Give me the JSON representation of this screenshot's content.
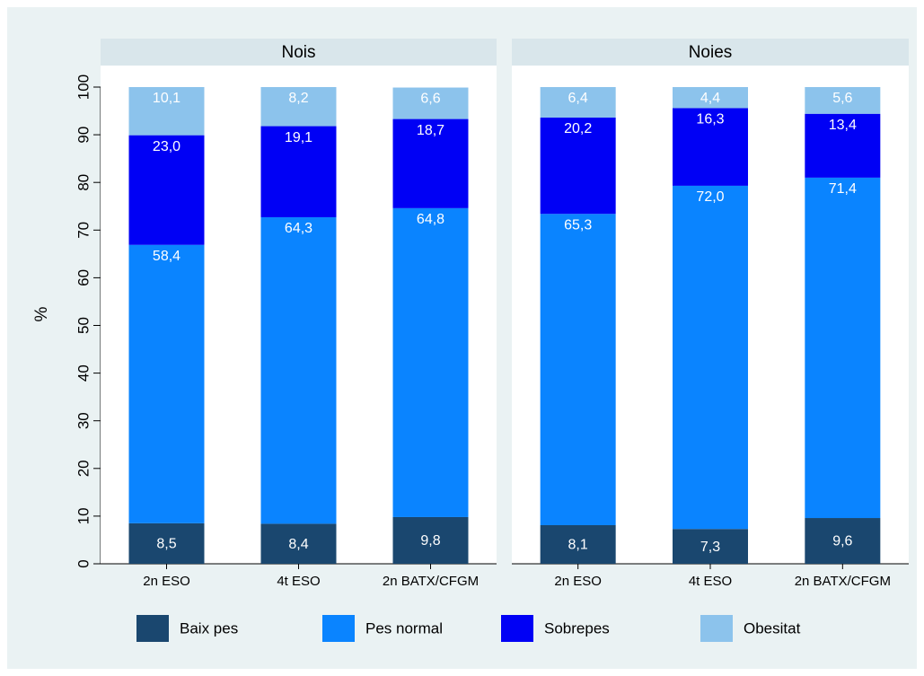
{
  "chart_data": {
    "type": "bar",
    "stacked": true,
    "ylabel": "%",
    "ylim": [
      0,
      100
    ],
    "yticks": [
      0,
      10,
      20,
      30,
      40,
      50,
      60,
      70,
      80,
      90,
      100
    ],
    "categories": [
      "2n ESO",
      "4t ESO",
      "2n BATX/CFGM"
    ],
    "grid": false,
    "legend_position": "bottom",
    "series_colors": {
      "Baix pes": "#1a476f",
      "Pes normal": "#0a84ff",
      "Sobrepes": "#0000f5",
      "Obesitat": "#8cc3ec"
    },
    "legend": [
      "Baix pes",
      "Pes normal",
      "Sobrepes",
      "Obesitat"
    ],
    "panels": [
      {
        "title": "Nois",
        "series": [
          {
            "name": "Baix pes",
            "values": [
              8.5,
              8.4,
              9.8
            ],
            "labels": [
              "8,5",
              "8,4",
              "9,8"
            ]
          },
          {
            "name": "Pes normal",
            "values": [
              58.4,
              64.3,
              64.8
            ],
            "labels": [
              "58,4",
              "64,3",
              "64,8"
            ]
          },
          {
            "name": "Sobrepes",
            "values": [
              23.0,
              19.1,
              18.7
            ],
            "labels": [
              "23,0",
              "19,1",
              "18,7"
            ]
          },
          {
            "name": "Obesitat",
            "values": [
              10.1,
              8.2,
              6.6
            ],
            "labels": [
              "10,1",
              "8,2",
              "6,6"
            ]
          }
        ]
      },
      {
        "title": "Noies",
        "series": [
          {
            "name": "Baix pes",
            "values": [
              8.1,
              7.3,
              9.6
            ],
            "labels": [
              "8,1",
              "7,3",
              "9,6"
            ]
          },
          {
            "name": "Pes normal",
            "values": [
              65.3,
              72.0,
              71.4
            ],
            "labels": [
              "65,3",
              "72,0",
              "71,4"
            ]
          },
          {
            "name": "Sobrepes",
            "values": [
              20.2,
              16.3,
              13.4
            ],
            "labels": [
              "20,2",
              "16,3",
              "13,4"
            ]
          },
          {
            "name": "Obesitat",
            "values": [
              6.4,
              4.4,
              5.6
            ],
            "labels": [
              "6,4",
              "4,4",
              "5,6"
            ]
          }
        ]
      }
    ]
  }
}
